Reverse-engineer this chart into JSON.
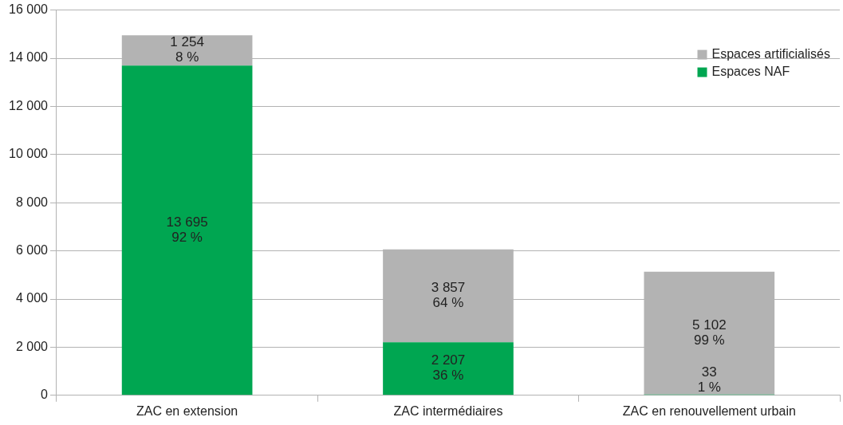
{
  "chart_data": {
    "type": "bar",
    "stacked": true,
    "categories": [
      "ZAC en extension",
      "ZAC intermédiaires",
      "ZAC en renouvellement urbain"
    ],
    "series": [
      {
        "name": "Espaces NAF",
        "color": "#00a651",
        "values": [
          13695,
          2207,
          33
        ],
        "value_labels": [
          "13 695\n92 %",
          "2 207\n36 %",
          "33\n1 %"
        ]
      },
      {
        "name": "Espaces artificialisés",
        "color": "#b3b3b3",
        "values": [
          1254,
          3857,
          5102
        ],
        "value_labels": [
          "1 254\n8 %",
          "3 857\n64 %",
          "5 102\n99 %"
        ]
      }
    ],
    "ylim": [
      0,
      16000
    ],
    "yticks": [
      {
        "value": 0,
        "label": "0"
      },
      {
        "value": 2000,
        "label": "2 000"
      },
      {
        "value": 4000,
        "label": "4 000"
      },
      {
        "value": 6000,
        "label": "6 000"
      },
      {
        "value": 8000,
        "label": "8 000"
      },
      {
        "value": 10000,
        "label": "10 000"
      },
      {
        "value": 12000,
        "label": "12 000"
      },
      {
        "value": 14000,
        "label": "14 000"
      },
      {
        "value": 16000,
        "label": "16 000"
      }
    ],
    "grid": "y",
    "legend": "top right"
  }
}
